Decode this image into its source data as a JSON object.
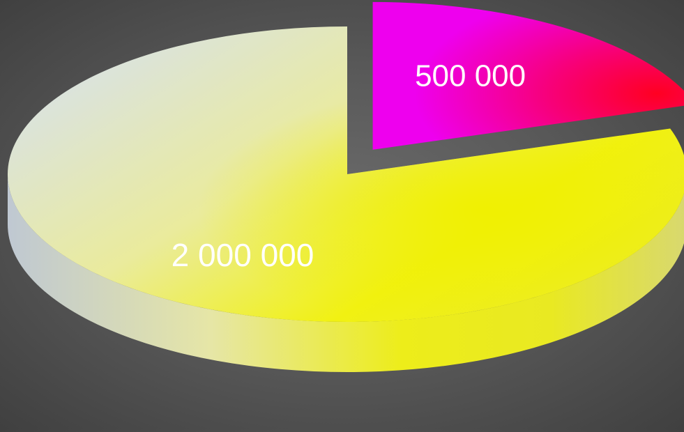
{
  "chart_data": {
    "type": "pie",
    "title": "",
    "style": "3d-exploded",
    "slices": [
      {
        "label": "500 000",
        "value": 500000,
        "color": "#ff0033",
        "highlight": "#ee00ee",
        "exploded": true
      },
      {
        "label": "2 000 000",
        "value": 2000000,
        "color": "#f2f200",
        "highlight": "#dfe6ee",
        "exploded": false
      }
    ],
    "label_color": "#ffffff",
    "legend": "none"
  }
}
